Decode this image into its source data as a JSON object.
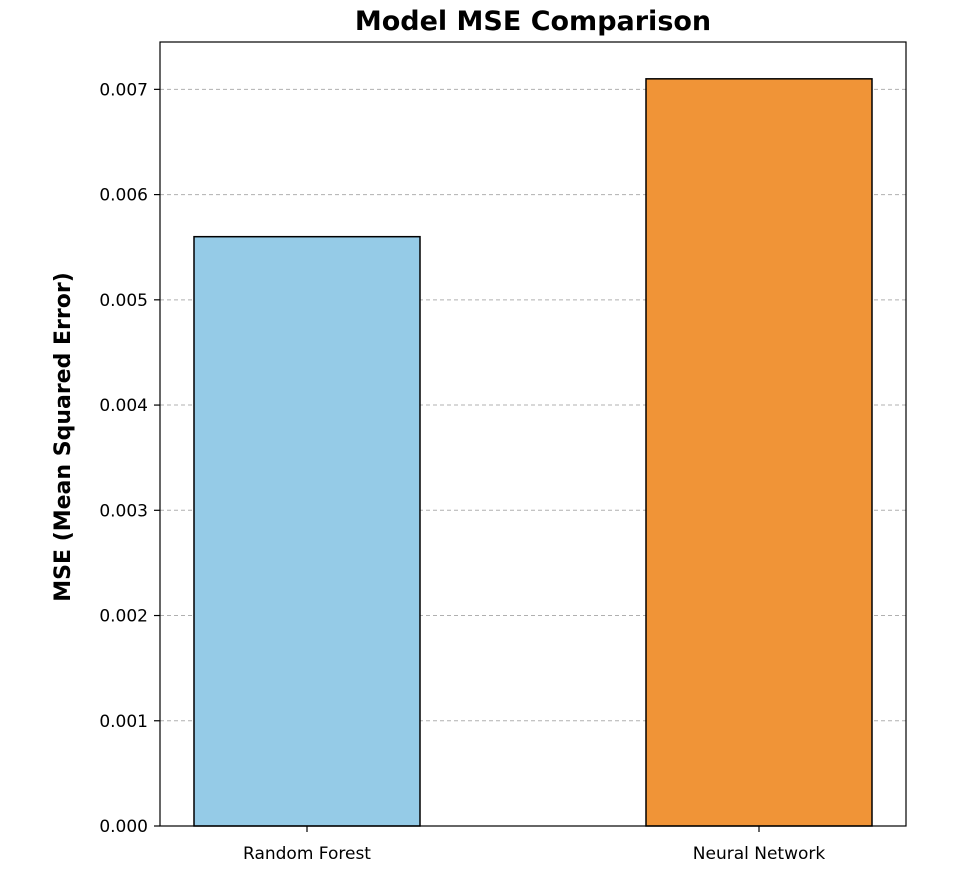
{
  "chart_data": {
    "type": "bar",
    "title": "Model MSE Comparison",
    "xlabel": "",
    "ylabel": "MSE (Mean Squared Error)",
    "categories": [
      "Random Forest",
      "Neural Network"
    ],
    "values": [
      0.0056,
      0.0071
    ],
    "bar_colors": [
      "#95cbe7",
      "#f09437"
    ],
    "edge_color": "#000000",
    "ylim": [
      0,
      0.00745
    ],
    "yticks": [
      0.0,
      0.001,
      0.002,
      0.003,
      0.004,
      0.005,
      0.006,
      0.007
    ],
    "ytick_labels": [
      "0.000",
      "0.001",
      "0.002",
      "0.003",
      "0.004",
      "0.005",
      "0.006",
      "0.007"
    ],
    "grid": {
      "axis": "y",
      "style": "dashed",
      "color": "#b0b0b0"
    },
    "legend": "none"
  }
}
